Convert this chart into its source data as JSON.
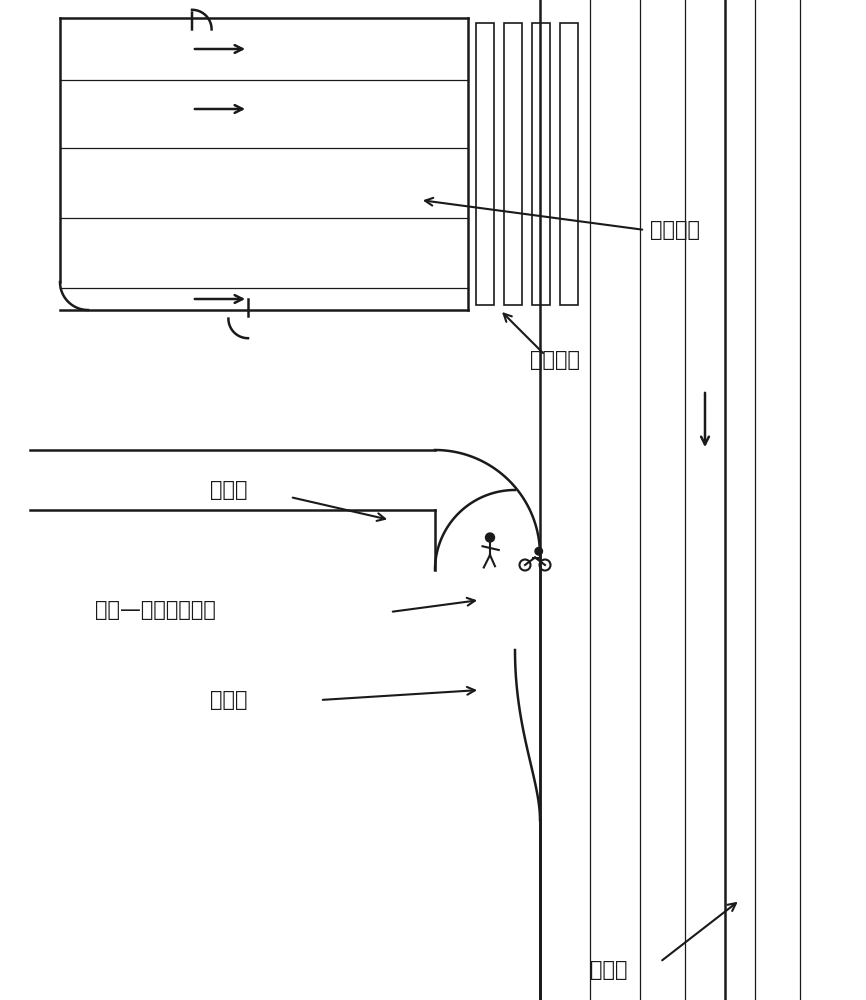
{
  "bg_color": "#ffffff",
  "line_color": "#1a1a1a",
  "label_机动车道": "机动车道",
  "label_人行横道": "人行横道",
  "label_人行道": "人行道",
  "label_行人自行车共享道": "行人—自行车共享道",
  "label_接入口": "接入口",
  "label_分隔带": "分隔带",
  "font_size_label": 15,
  "fig_width": 8.66,
  "fig_height": 10.0
}
